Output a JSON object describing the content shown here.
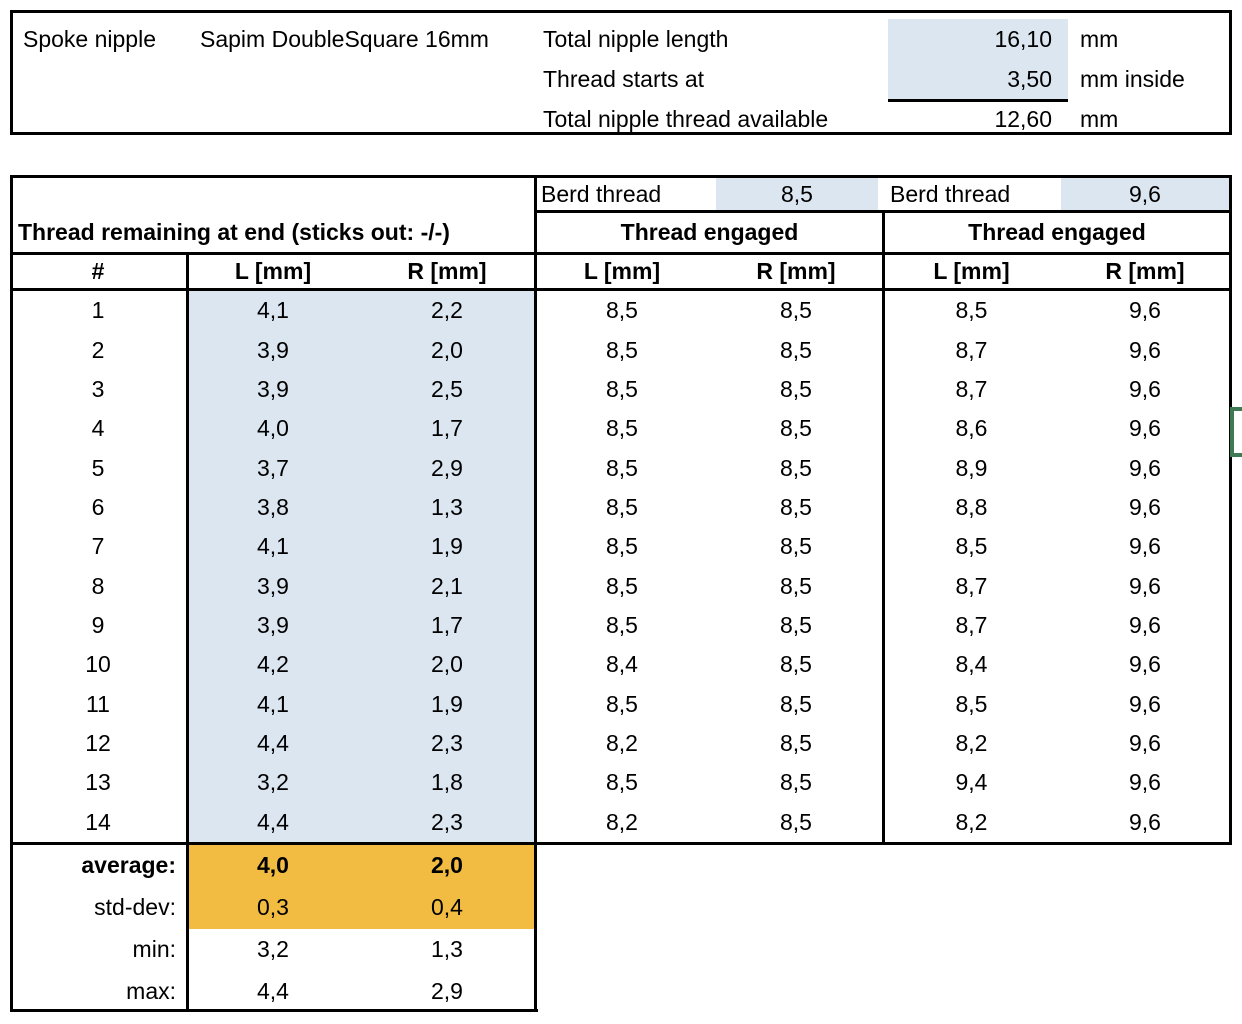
{
  "colors": {
    "highlight_blue": "#dce6f1",
    "highlight_orange": "#f2bc42",
    "selection_green": "#3f7a55"
  },
  "info_box": {
    "title": "Spoke nipple",
    "product": "Sapim DoubleSquare 16mm",
    "rows": [
      {
        "label": "Total nipple length",
        "value": "16,10",
        "unit": "mm"
      },
      {
        "label": "Thread starts at",
        "value": "3,50",
        "unit": "mm inside"
      },
      {
        "label": "Total nipple thread available",
        "value": "12,60",
        "unit": "mm"
      }
    ]
  },
  "measurements": {
    "berd": [
      {
        "label": "Berd thread",
        "value": "8,5"
      },
      {
        "label": "Berd thread",
        "value": "9,6"
      }
    ],
    "section_titles": {
      "remaining": "Thread remaining at end (sticks out: -/-)",
      "engaged1": "Thread engaged",
      "engaged2": "Thread engaged"
    },
    "column_headers": [
      "#",
      "L [mm]",
      "R [mm]",
      "L [mm]",
      "R [mm]",
      "L [mm]",
      "R [mm]"
    ],
    "rows": [
      [
        "1",
        "4,1",
        "2,2",
        "8,5",
        "8,5",
        "8,5",
        "9,6"
      ],
      [
        "2",
        "3,9",
        "2,0",
        "8,5",
        "8,5",
        "8,7",
        "9,6"
      ],
      [
        "3",
        "3,9",
        "2,5",
        "8,5",
        "8,5",
        "8,7",
        "9,6"
      ],
      [
        "4",
        "4,0",
        "1,7",
        "8,5",
        "8,5",
        "8,6",
        "9,6"
      ],
      [
        "5",
        "3,7",
        "2,9",
        "8,5",
        "8,5",
        "8,9",
        "9,6"
      ],
      [
        "6",
        "3,8",
        "1,3",
        "8,5",
        "8,5",
        "8,8",
        "9,6"
      ],
      [
        "7",
        "4,1",
        "1,9",
        "8,5",
        "8,5",
        "8,5",
        "9,6"
      ],
      [
        "8",
        "3,9",
        "2,1",
        "8,5",
        "8,5",
        "8,7",
        "9,6"
      ],
      [
        "9",
        "3,9",
        "1,7",
        "8,5",
        "8,5",
        "8,7",
        "9,6"
      ],
      [
        "10",
        "4,2",
        "2,0",
        "8,4",
        "8,5",
        "8,4",
        "9,6"
      ],
      [
        "11",
        "4,1",
        "1,9",
        "8,5",
        "8,5",
        "8,5",
        "9,6"
      ],
      [
        "12",
        "4,4",
        "2,3",
        "8,2",
        "8,5",
        "8,2",
        "9,6"
      ],
      [
        "13",
        "3,2",
        "1,8",
        "8,5",
        "8,5",
        "9,4",
        "9,6"
      ],
      [
        "14",
        "4,4",
        "2,3",
        "8,2",
        "8,5",
        "8,2",
        "9,6"
      ]
    ],
    "stats": [
      {
        "label": "average:",
        "values": [
          "4,0",
          "2,0"
        ]
      },
      {
        "label": "std-dev:",
        "values": [
          "0,3",
          "0,4"
        ]
      },
      {
        "label": "min:",
        "values": [
          "3,2",
          "1,3"
        ]
      },
      {
        "label": "max:",
        "values": [
          "4,4",
          "2,9"
        ]
      }
    ]
  }
}
